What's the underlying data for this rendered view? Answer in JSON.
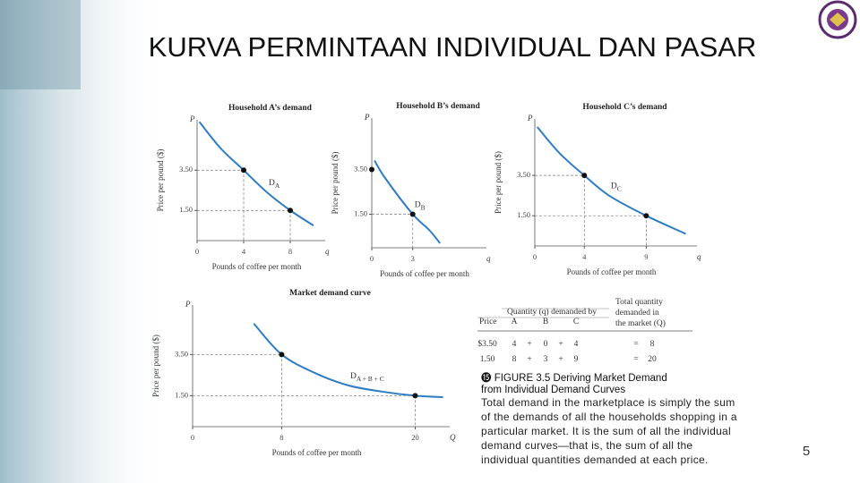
{
  "title": "KURVA PERMINTAAN INDIVIDUAL DAN PASAR",
  "chart_data": [
    {
      "type": "line",
      "title": "Household A’s demand",
      "y_label": "Price per pound ($)",
      "x_label": "Pounds of coffee per month",
      "y_axis_letter": "P",
      "x_axis_letter": "q",
      "xlim": [
        0,
        11
      ],
      "ylim": [
        0,
        6
      ],
      "xticks": [
        0,
        4,
        8
      ],
      "yticks": [
        {
          "value": 3.5,
          "label": "3.50"
        },
        {
          "value": 1.5,
          "label": "1.50"
        }
      ],
      "curve": {
        "label": "D",
        "label_sub": "A",
        "color": "#2f7cc6",
        "x": [
          0.2,
          2,
          4,
          6,
          8,
          10
        ],
        "values": [
          5.9,
          4.6,
          3.5,
          2.4,
          1.5,
          0.75
        ]
      },
      "points": {
        "color": "#111111",
        "x": [
          4,
          8
        ],
        "values": [
          3.5,
          1.5
        ]
      }
    },
    {
      "type": "line",
      "title": "Household B’s demand",
      "y_label": "Price per pound ($)",
      "x_label": "Pounds of coffee per month",
      "y_axis_letter": "P",
      "x_axis_letter": "q",
      "xlim": [
        0,
        8.4
      ],
      "ylim": [
        0,
        5.8
      ],
      "xticks": [
        0,
        3
      ],
      "yticks": [
        {
          "value": 3.5,
          "label": "3.50"
        },
        {
          "value": 1.5,
          "label": "1.50"
        }
      ],
      "curve": {
        "label": "D",
        "label_sub": "B",
        "color": "#2f7cc6",
        "x": [
          0.2,
          1,
          3,
          4.2,
          5
        ],
        "values": [
          3.9,
          3.1,
          1.5,
          0.8,
          0.2
        ]
      },
      "points": {
        "color": "#111111",
        "x": [
          0,
          3
        ],
        "values": [
          3.5,
          1.5
        ]
      }
    },
    {
      "type": "line",
      "title": "Household C’s demand",
      "y_label": "Price per pound ($)",
      "x_label": "Pounds of coffee per month",
      "y_axis_letter": "P",
      "x_axis_letter": "q",
      "xlim": [
        0,
        13.1
      ],
      "ylim": [
        0,
        6.3
      ],
      "xticks": [
        0,
        4,
        9
      ],
      "yticks": [
        {
          "value": 3.5,
          "label": "3.50"
        },
        {
          "value": 1.5,
          "label": "1.50"
        }
      ],
      "curve": {
        "label": "D",
        "label_sub": "C",
        "color": "#2f7cc6",
        "x": [
          0.2,
          2,
          4,
          6,
          9,
          12.2
        ],
        "values": [
          5.9,
          4.6,
          3.5,
          2.5,
          1.5,
          0.6
        ]
      },
      "points": {
        "color": "#111111",
        "x": [
          4,
          9
        ],
        "values": [
          3.5,
          1.5
        ]
      }
    },
    {
      "type": "line",
      "title": "Market demand curve",
      "y_label": "Price per pound ($)",
      "x_label": "Pounds of coffee per month",
      "y_axis_letter": "P",
      "x_axis_letter": "Q",
      "xlim": [
        0,
        23.1
      ],
      "ylim": [
        0,
        5.9
      ],
      "xticks": [
        0,
        8,
        20
      ],
      "yticks": [
        {
          "value": 3.5,
          "label": "3.50"
        },
        {
          "value": 1.5,
          "label": "1.50"
        }
      ],
      "curve": {
        "label": "D",
        "label_sub": "A + B + C",
        "color": "#2f7cc6",
        "x": [
          5.5,
          8,
          11,
          14,
          17,
          20,
          22.5
        ],
        "values": [
          5.0,
          3.5,
          2.6,
          2.0,
          1.7,
          1.5,
          1.43
        ]
      },
      "points": {
        "color": "#111111",
        "x": [
          8,
          20
        ],
        "values": [
          3.5,
          1.5
        ]
      }
    }
  ],
  "table": {
    "header_price": "Price",
    "header_quantity": "Quantity (q) demanded by",
    "header_total": [
      "Total quantity",
      "demanded in",
      "the market (Q)"
    ],
    "header_households": [
      "A",
      "B",
      "C"
    ],
    "rows": [
      [
        "$3.50",
        "4",
        "+",
        "0",
        "+",
        "4",
        "=",
        "8"
      ],
      [
        "1.50",
        "8",
        "+",
        "3",
        "+",
        "9",
        "=",
        "20"
      ]
    ]
  },
  "caption": {
    "icon": "⓯",
    "lines": [
      "FIGURE 3.5 Deriving Market Demand",
      "from Individual Demand Curves"
    ]
  },
  "body": [
    "Total demand in the marketplace is simply the sum",
    "of the demands of all the households shopping in a",
    "particular market. It is the sum of all the individual",
    "demand curves—that is, the sum of all the",
    "individual quantities demanded at each price."
  ],
  "page_number": "5"
}
